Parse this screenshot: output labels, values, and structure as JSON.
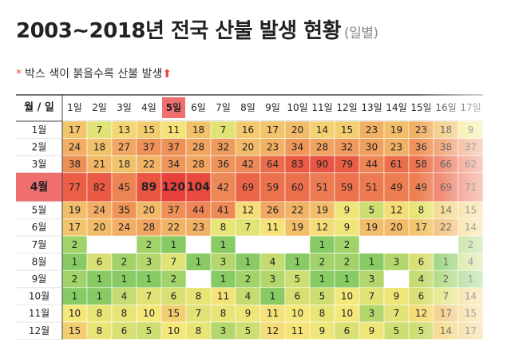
{
  "header": {
    "title": "2003~2018년 전국 산불 발생 현황",
    "subtitle": "(일별)",
    "note_mark": "*",
    "note": "박스 색이 붉을수록 산불 발생",
    "note_arrow": "⬆"
  },
  "colors": {
    "header_highlight": "#f07070",
    "row_highlight": "#f07070",
    "scale_low": "#5cbf5c",
    "scale_mid": "#f5e87a",
    "scale_high": "#e8403a"
  },
  "chart_data": {
    "type": "heatmap",
    "corner_label": "월 / 일",
    "columns": [
      "1일",
      "2일",
      "3일",
      "4일",
      "5일",
      "6일",
      "7일",
      "8일",
      "9일",
      "10일",
      "11일",
      "12일",
      "13일",
      "14일",
      "15일",
      "16일",
      "17일"
    ],
    "rows": [
      "1월",
      "2월",
      "3월",
      "4월",
      "5월",
      "6월",
      "7월",
      "8월",
      "9월",
      "10월",
      "11월",
      "12월"
    ],
    "highlight_column": 4,
    "highlight_row": 3,
    "bold_cells": [
      [
        3,
        3
      ],
      [
        3,
        4
      ],
      [
        3,
        5
      ]
    ],
    "values": [
      [
        17,
        7,
        13,
        15,
        11,
        18,
        7,
        16,
        17,
        20,
        14,
        15,
        23,
        19,
        23,
        18,
        9
      ],
      [
        24,
        18,
        27,
        37,
        37,
        28,
        32,
        20,
        23,
        34,
        28,
        32,
        30,
        23,
        36,
        38,
        37
      ],
      [
        38,
        21,
        18,
        22,
        34,
        28,
        36,
        42,
        64,
        83,
        90,
        79,
        44,
        61,
        58,
        66,
        62
      ],
      [
        77,
        82,
        45,
        89,
        120,
        104,
        42,
        69,
        59,
        60,
        51,
        59,
        51,
        49,
        49,
        69,
        71
      ],
      [
        19,
        24,
        35,
        20,
        37,
        44,
        41,
        12,
        26,
        22,
        19,
        9,
        5,
        12,
        8,
        14,
        15
      ],
      [
        17,
        20,
        24,
        28,
        22,
        23,
        8,
        7,
        11,
        19,
        12,
        9,
        19,
        20,
        17,
        22,
        14
      ],
      [
        2,
        null,
        null,
        2,
        1,
        null,
        1,
        null,
        null,
        null,
        1,
        2,
        null,
        null,
        null,
        null,
        2
      ],
      [
        1,
        6,
        2,
        3,
        7,
        1,
        3,
        1,
        4,
        1,
        2,
        2,
        1,
        3,
        6,
        1,
        4
      ],
      [
        2,
        1,
        1,
        1,
        2,
        null,
        1,
        2,
        3,
        5,
        1,
        1,
        3,
        null,
        4,
        2,
        1
      ],
      [
        1,
        1,
        4,
        7,
        6,
        8,
        11,
        4,
        1,
        6,
        5,
        10,
        7,
        9,
        6,
        7,
        14
      ],
      [
        10,
        8,
        8,
        10,
        15,
        7,
        8,
        9,
        11,
        10,
        8,
        10,
        3,
        7,
        12,
        17,
        15
      ],
      [
        15,
        8,
        6,
        5,
        10,
        8,
        3,
        5,
        12,
        11,
        9,
        6,
        9,
        5,
        5,
        14,
        17
      ]
    ]
  }
}
